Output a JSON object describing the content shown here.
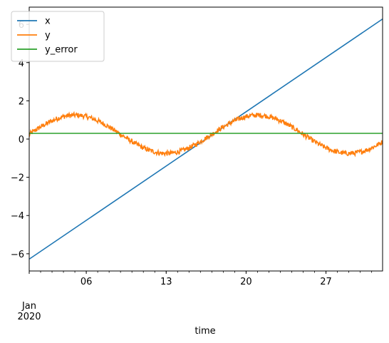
{
  "chart_data": {
    "type": "line",
    "xlabel": "time",
    "ylabel": "",
    "xlim": [
      "2020-01-01",
      "2020-01-31T23:00"
    ],
    "ylim": [
      -6.9,
      6.9
    ],
    "x_major_ticks": [
      {
        "date": "2020-01-06",
        "label": "06"
      },
      {
        "date": "2020-01-13",
        "label": "13"
      },
      {
        "date": "2020-01-20",
        "label": "20"
      },
      {
        "date": "2020-01-27",
        "label": "27"
      }
    ],
    "x_start_label": {
      "line1": "Jan",
      "line2": "2020"
    },
    "yticks": [
      -6,
      -4,
      -2,
      0,
      2,
      4,
      6
    ],
    "grid": false,
    "legend": "upper-left",
    "series": [
      {
        "name": "x",
        "color": "#1f77b4",
        "shape": "linear",
        "points": [
          [
            "2020-01-01",
            -6.28
          ],
          [
            "2020-01-31T23:00",
            6.28
          ]
        ]
      },
      {
        "name": "y",
        "color": "#ff7f0e",
        "shape": "noisy sine",
        "baseline": 0.25,
        "amplitude": 1.0,
        "period_days": 16.0,
        "noise": 0.08
      },
      {
        "name": "y_error",
        "color": "#2ca02c",
        "shape": "constant",
        "value": 0.3
      }
    ]
  }
}
